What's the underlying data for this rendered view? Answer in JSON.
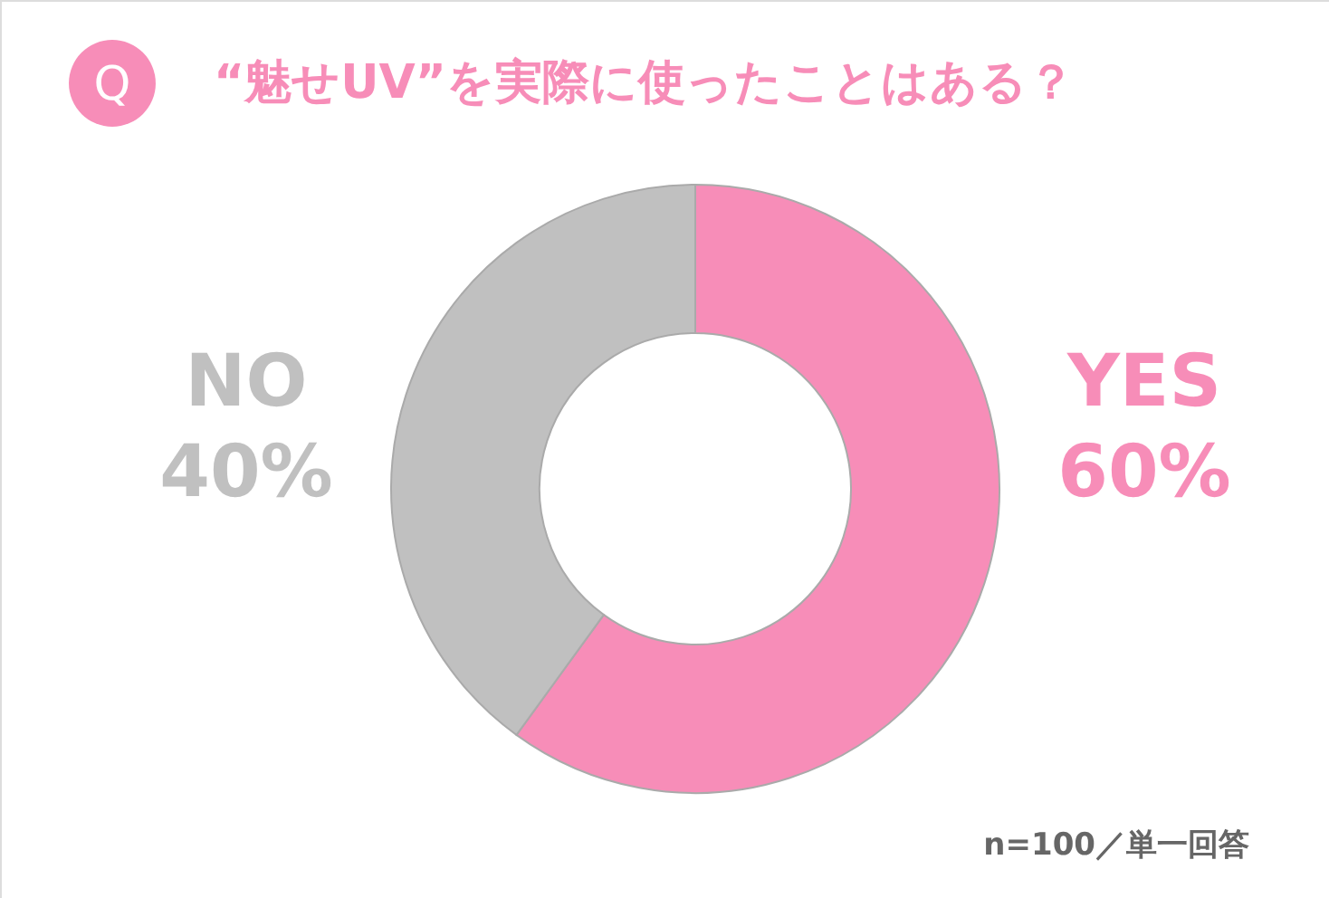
{
  "chart_data": {
    "type": "donut",
    "title": "“魅せUV”を実際に使ったことはある？",
    "categories": [
      "YES",
      "NO"
    ],
    "values": [
      60,
      40
    ],
    "colors": [
      "#f78db8",
      "#c0c0c0"
    ],
    "value_labels": [
      "60%",
      "40%"
    ],
    "annotations": [
      "Q",
      "n=100／単一回答"
    ]
  }
}
